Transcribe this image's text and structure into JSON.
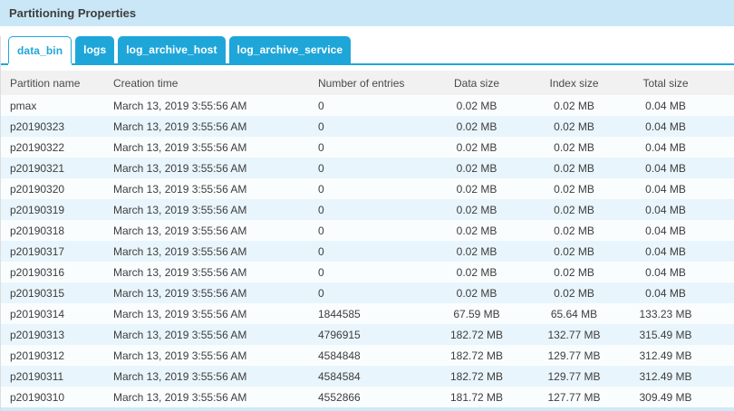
{
  "panel": {
    "title": "Partitioning Properties"
  },
  "tabs": [
    {
      "label": "data_bin",
      "active": true
    },
    {
      "label": "logs",
      "active": false
    },
    {
      "label": "log_archive_host",
      "active": false
    },
    {
      "label": "log_archive_service",
      "active": false
    }
  ],
  "table": {
    "columns": [
      {
        "key": "partition_name",
        "label": "Partition name",
        "align": "left"
      },
      {
        "key": "creation_time",
        "label": "Creation time",
        "align": "left"
      },
      {
        "key": "number_of_entries",
        "label": "Number of entries",
        "align": "left"
      },
      {
        "key": "data_size",
        "label": "Data size",
        "align": "center"
      },
      {
        "key": "index_size",
        "label": "Index size",
        "align": "center"
      },
      {
        "key": "total_size",
        "label": "Total size",
        "align": "center"
      }
    ],
    "rows": [
      [
        "pmax",
        "March 13, 2019 3:55:56 AM",
        "0",
        "0.02 MB",
        "0.02 MB",
        "0.04 MB"
      ],
      [
        "p20190323",
        "March 13, 2019 3:55:56 AM",
        "0",
        "0.02 MB",
        "0.02 MB",
        "0.04 MB"
      ],
      [
        "p20190322",
        "March 13, 2019 3:55:56 AM",
        "0",
        "0.02 MB",
        "0.02 MB",
        "0.04 MB"
      ],
      [
        "p20190321",
        "March 13, 2019 3:55:56 AM",
        "0",
        "0.02 MB",
        "0.02 MB",
        "0.04 MB"
      ],
      [
        "p20190320",
        "March 13, 2019 3:55:56 AM",
        "0",
        "0.02 MB",
        "0.02 MB",
        "0.04 MB"
      ],
      [
        "p20190319",
        "March 13, 2019 3:55:56 AM",
        "0",
        "0.02 MB",
        "0.02 MB",
        "0.04 MB"
      ],
      [
        "p20190318",
        "March 13, 2019 3:55:56 AM",
        "0",
        "0.02 MB",
        "0.02 MB",
        "0.04 MB"
      ],
      [
        "p20190317",
        "March 13, 2019 3:55:56 AM",
        "0",
        "0.02 MB",
        "0.02 MB",
        "0.04 MB"
      ],
      [
        "p20190316",
        "March 13, 2019 3:55:56 AM",
        "0",
        "0.02 MB",
        "0.02 MB",
        "0.04 MB"
      ],
      [
        "p20190315",
        "March 13, 2019 3:55:56 AM",
        "0",
        "0.02 MB",
        "0.02 MB",
        "0.04 MB"
      ],
      [
        "p20190314",
        "March 13, 2019 3:55:56 AM",
        "1844585",
        "67.59 MB",
        "65.64 MB",
        "133.23 MB"
      ],
      [
        "p20190313",
        "March 13, 2019 3:55:56 AM",
        "4796915",
        "182.72 MB",
        "132.77 MB",
        "315.49 MB"
      ],
      [
        "p20190312",
        "March 13, 2019 3:55:56 AM",
        "4584848",
        "182.72 MB",
        "129.77 MB",
        "312.49 MB"
      ],
      [
        "p20190311",
        "March 13, 2019 3:55:56 AM",
        "4584584",
        "182.72 MB",
        "129.77 MB",
        "312.49 MB"
      ],
      [
        "p20190310",
        "March 13, 2019 3:55:56 AM",
        "4552866",
        "181.72 MB",
        "127.77 MB",
        "309.49 MB"
      ]
    ]
  },
  "colors": {
    "accent": "#1fa6d9",
    "title_bar_bg": "#c9e7f6",
    "header_bg": "#f1f1f1",
    "row_odd": "#fafdfe",
    "row_even": "#e9f5fc",
    "bottom_sliver": "#cfe9f6",
    "text": "#3d3d3d"
  }
}
